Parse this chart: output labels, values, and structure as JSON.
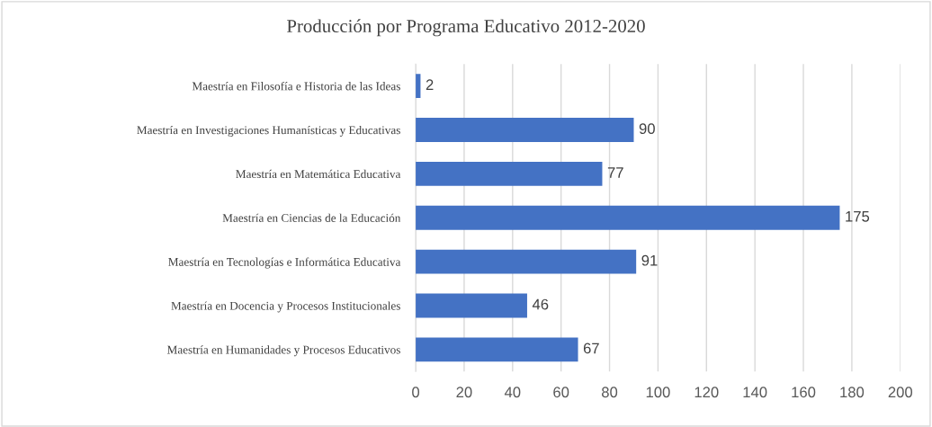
{
  "chart_data": {
    "type": "bar",
    "orientation": "horizontal",
    "title": "Producción por Programa Educativo 2012-2020",
    "categories": [
      "Maestría en Filosofía e Historia de las Ideas",
      "Maestría en Investigaciones Humanísticas y Educativas",
      "Maestría en Matemática Educativa",
      "Maestría en Ciencias de la Educación",
      "Maestría en Tecnologías e Informática Educativa",
      "Maestría en Docencia y Procesos Institucionales",
      "Maestría en Humanidades y Procesos Educativos"
    ],
    "values": [
      2,
      90,
      77,
      175,
      91,
      46,
      67
    ],
    "color": "#4472c4",
    "xlim": [
      0,
      200
    ],
    "xticks": [
      0,
      20,
      40,
      60,
      80,
      100,
      120,
      140,
      160,
      180,
      200
    ],
    "grid": "x",
    "data_labels": true
  }
}
